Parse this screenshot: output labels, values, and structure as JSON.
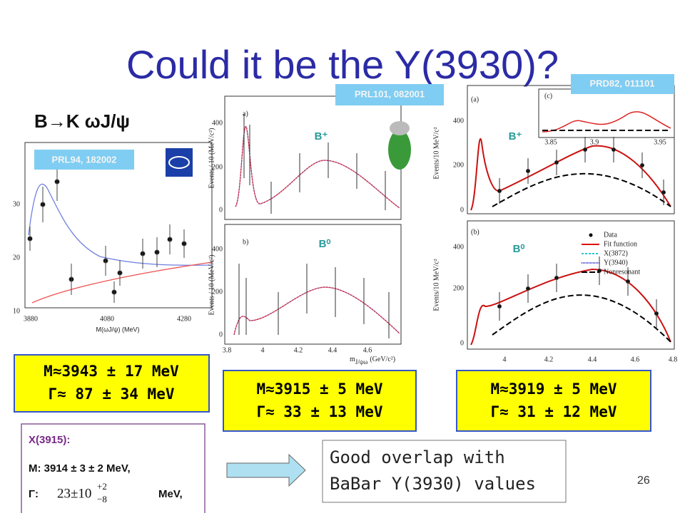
{
  "title": "Could it be the Y(3930)?",
  "decay": "B→K ωJ/ψ",
  "belle": {
    "reference": "PRL94, 182002",
    "x_label": "M(ωJ/ψ) (MeV)",
    "x_ticks": [
      "3880",
      "4080",
      "4280"
    ],
    "y_ticks": [
      "10",
      "20",
      "30"
    ]
  },
  "babar_2008": {
    "reference": "PRL101, 082001",
    "y_label": "Events / 10 (MeV/c²)",
    "x_label": "m",
    "x_label_sub": "J/ψω",
    "x_label_unit": "(GeV/c²)",
    "panels": [
      "a)",
      "b)"
    ],
    "charge_labels": [
      "B⁺",
      "B⁰"
    ],
    "x_ticks": [
      "3.8",
      "4",
      "4.2",
      "4.4",
      "4.6"
    ],
    "y_ticks": [
      "0",
      "200",
      "400"
    ]
  },
  "babar_2010": {
    "reference": "PRD82, 011101",
    "y_label": "Events/10 MeV/c²",
    "panels": [
      "(a)",
      "(b)",
      "(c)"
    ],
    "charge_labels": [
      "B⁺",
      "B⁰"
    ],
    "x_ticks": [
      "4",
      "4.2",
      "4.4",
      "4.6",
      "4.8"
    ],
    "y_ticks": [
      "0",
      "200",
      "400"
    ],
    "inset_x_ticks": [
      "3.85",
      "3.9",
      "3.95"
    ],
    "legend": [
      "Data",
      "Fit function",
      "X(3872)",
      "Y(3940)",
      "Nonresonant"
    ]
  },
  "results": [
    {
      "mass": "M≈3943 ± 17 MeV",
      "width": "Γ≈ 87 ± 34 MeV"
    },
    {
      "mass": "M≈3915 ± 5 MeV",
      "width": "Γ≈ 33 ± 13 MeV"
    },
    {
      "mass": "M≈3919 ± 5 MeV",
      "width": "Γ≈ 31 ± 12 MeV"
    }
  ],
  "x3915": {
    "name": "X(3915):",
    "mass": "M: 3914 ± 3 ± 2 MeV,",
    "width_label": "Γ:",
    "width_value": "23±10",
    "width_plus": "+2",
    "width_minus": "−8",
    "width_unit": "MeV,"
  },
  "conclusion": [
    "Good overlap with",
    "BaBar Y(3930) values"
  ],
  "page_number": "26"
}
